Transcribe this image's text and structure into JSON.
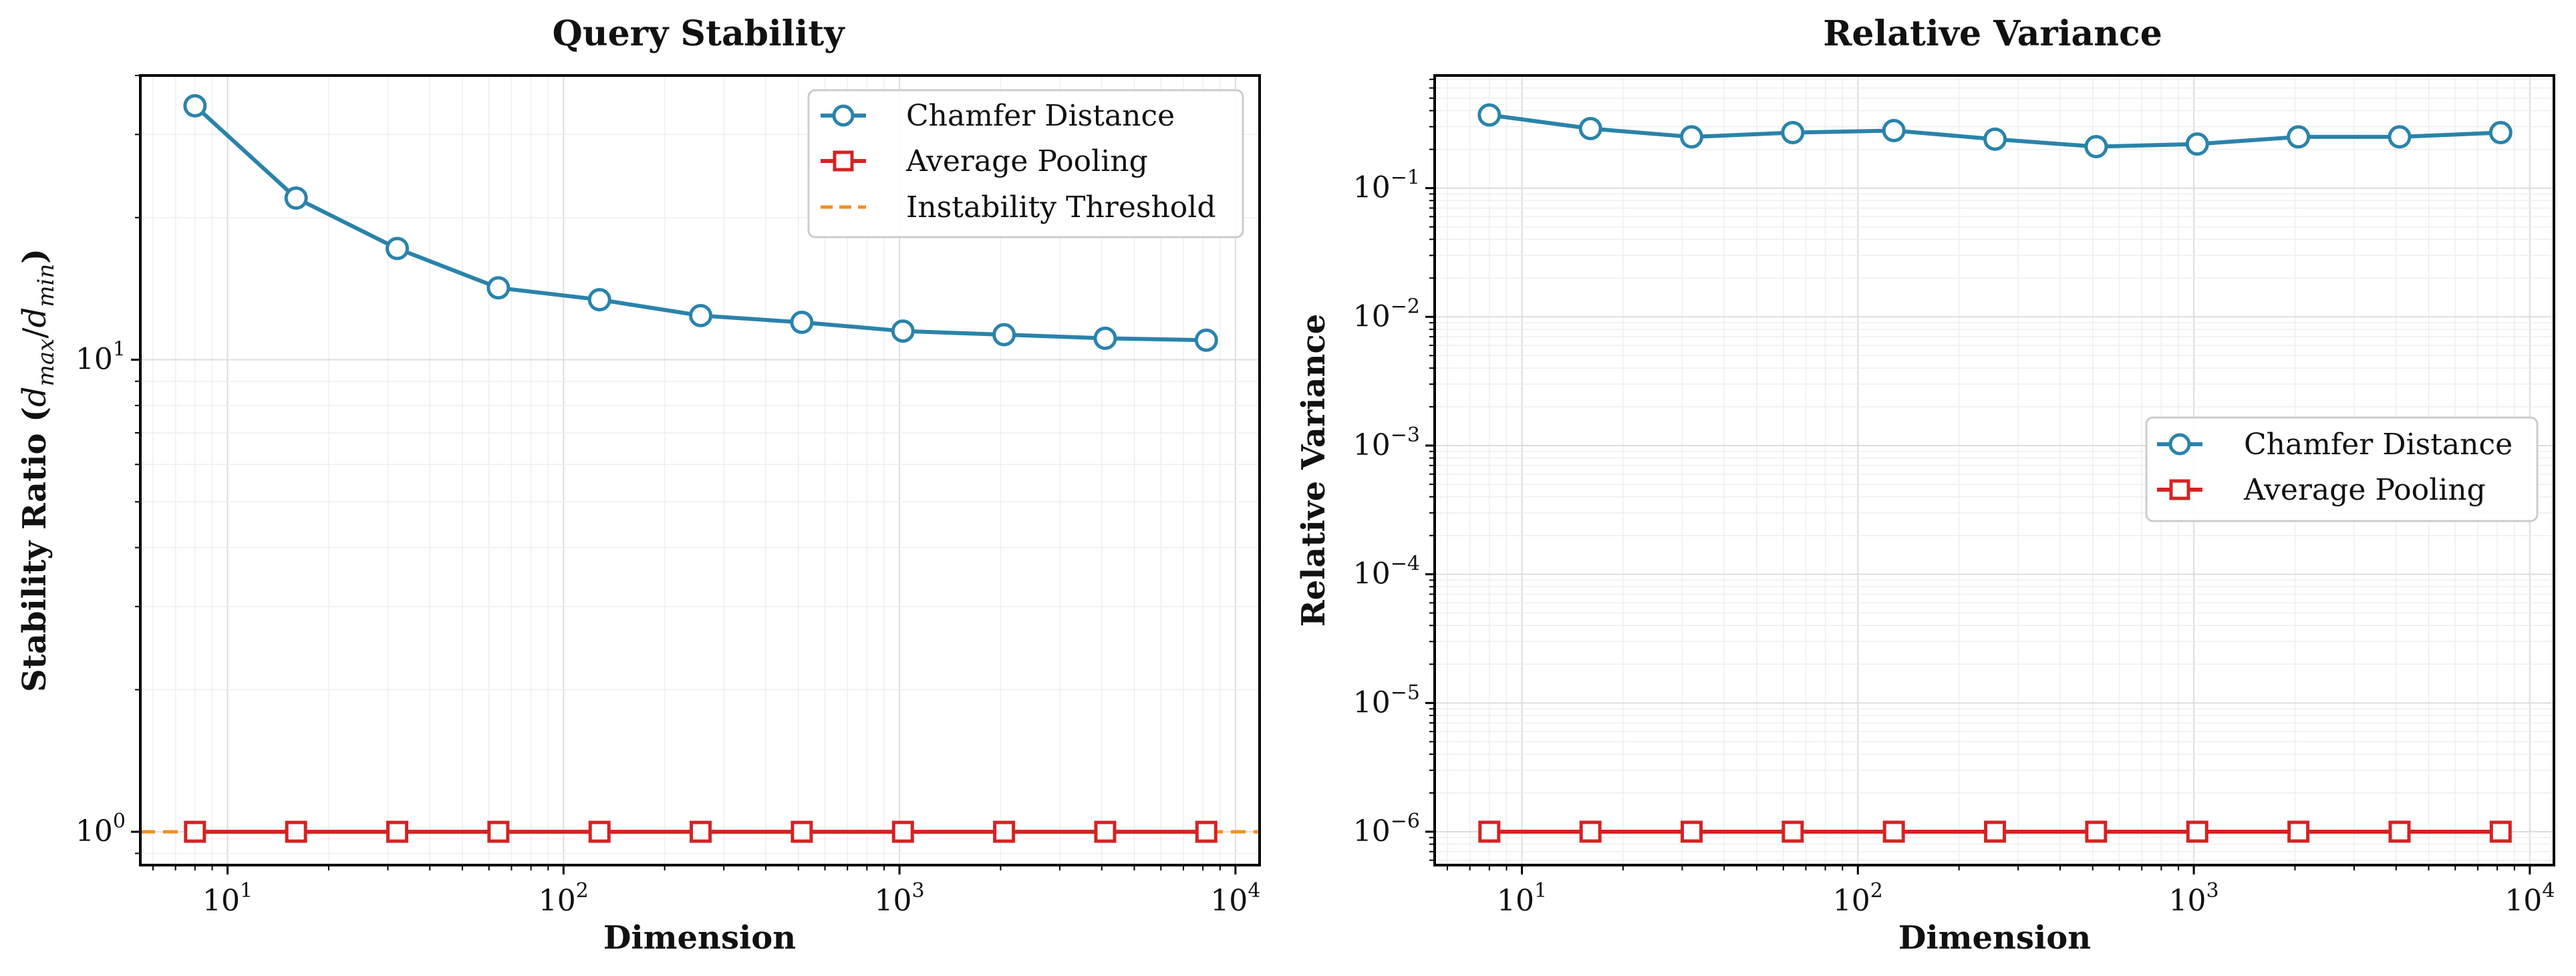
{
  "colors": {
    "chamfer": "#2a83aa",
    "pooling": "#d42323",
    "threshold": "#f28f20",
    "grid_major": "#dddddd",
    "grid_minor": "#eeeeee",
    "axes": "#000000"
  },
  "chart_data": [
    {
      "type": "line",
      "title": "Query Stability",
      "xlabel": "Dimension",
      "ylabel_main": "Stability Ratio (",
      "ylabel_d1": "d",
      "ylabel_s1": "max",
      "ylabel_slash": "/",
      "ylabel_d2": "d",
      "ylabel_s2": "min",
      "ylabel_end": ")",
      "x_scale": "log",
      "y_scale": "log",
      "xlim": [
        5.5,
        11800
      ],
      "ylim": [
        0.85,
        40
      ],
      "x_ticks": [
        {
          "value": 10,
          "base": "10",
          "exp": "1"
        },
        {
          "value": 100,
          "base": "10",
          "exp": "2"
        },
        {
          "value": 1000,
          "base": "10",
          "exp": "3"
        },
        {
          "value": 10000,
          "base": "10",
          "exp": "4"
        }
      ],
      "y_ticks": [
        {
          "value": 1,
          "base": "10",
          "exp": "0"
        },
        {
          "value": 10,
          "base": "10",
          "exp": "1"
        }
      ],
      "x": [
        8,
        16,
        32,
        64,
        128,
        256,
        512,
        1024,
        2048,
        4096,
        8192
      ],
      "series": [
        {
          "name": "Chamfer Distance",
          "marker": "circle",
          "color_key": "chamfer",
          "values": [
            34.5,
            22.0,
            17.2,
            14.2,
            13.4,
            12.4,
            12.0,
            11.5,
            11.3,
            11.1,
            11.0
          ]
        },
        {
          "name": "Average Pooling",
          "marker": "square",
          "color_key": "pooling",
          "values": [
            1.0,
            1.0,
            1.0,
            1.0,
            1.0,
            1.0,
            1.0,
            1.0,
            1.0,
            1.0,
            1.0
          ]
        }
      ],
      "hlines": [
        {
          "name": "Instability Threshold",
          "value": 1.0,
          "style": "dashed",
          "color_key": "threshold"
        }
      ],
      "grid": true,
      "legend_position": "top-right"
    },
    {
      "type": "line",
      "title": "Relative Variance",
      "xlabel": "Dimension",
      "ylabel": "Relative Variance",
      "x_scale": "log",
      "y_scale": "log",
      "xlim": [
        5.5,
        11800
      ],
      "ylim": [
        5.5e-07,
        0.75
      ],
      "x_ticks": [
        {
          "value": 10,
          "base": "10",
          "exp": "1"
        },
        {
          "value": 100,
          "base": "10",
          "exp": "2"
        },
        {
          "value": 1000,
          "base": "10",
          "exp": "3"
        },
        {
          "value": 10000,
          "base": "10",
          "exp": "4"
        }
      ],
      "y_ticks": [
        {
          "value": 1e-06,
          "base": "10",
          "exp": "−6"
        },
        {
          "value": 1e-05,
          "base": "10",
          "exp": "−5"
        },
        {
          "value": 0.0001,
          "base": "10",
          "exp": "−4"
        },
        {
          "value": 0.001,
          "base": "10",
          "exp": "−3"
        },
        {
          "value": 0.01,
          "base": "10",
          "exp": "−2"
        },
        {
          "value": 0.1,
          "base": "10",
          "exp": "−1"
        }
      ],
      "x": [
        8,
        16,
        32,
        64,
        128,
        256,
        512,
        1024,
        2048,
        4096,
        8192
      ],
      "series": [
        {
          "name": "Chamfer Distance",
          "marker": "circle",
          "color_key": "chamfer",
          "values": [
            0.37,
            0.29,
            0.25,
            0.27,
            0.28,
            0.24,
            0.21,
            0.22,
            0.25,
            0.25,
            0.27
          ]
        },
        {
          "name": "Average Pooling",
          "marker": "square",
          "color_key": "pooling",
          "values": [
            1e-06,
            1e-06,
            1e-06,
            1e-06,
            1e-06,
            1e-06,
            1e-06,
            1e-06,
            1e-06,
            1e-06,
            1e-06
          ]
        }
      ],
      "hlines": [],
      "grid": true,
      "legend_position": "center-right"
    }
  ]
}
